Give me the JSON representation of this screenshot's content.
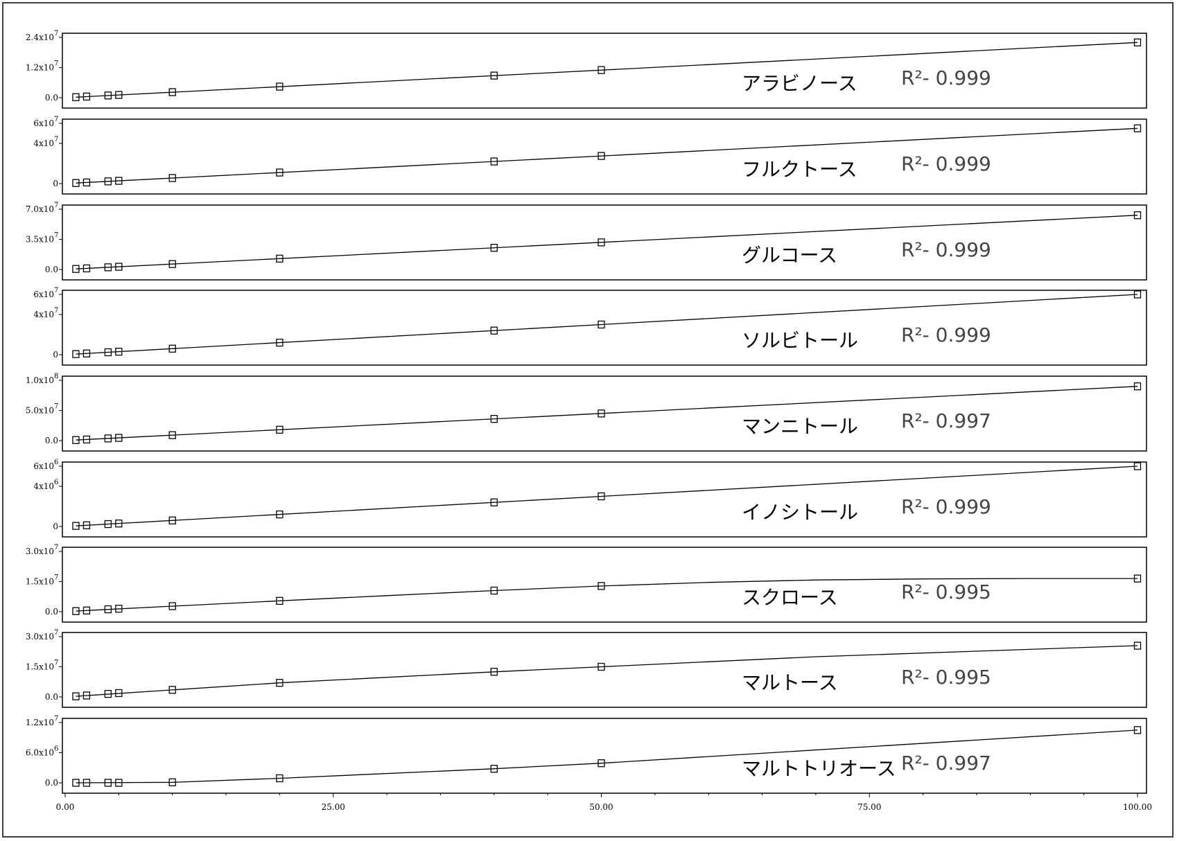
{
  "chart_data": [
    {
      "type": "scatter",
      "name": "アラビノース",
      "r2_label": "R²- 0.999",
      "y_ticks": [
        {
          "value": 0,
          "label": "0.0",
          "sup": ""
        },
        {
          "value": 12000000,
          "label": "1.2x10",
          "sup": "7"
        },
        {
          "value": 24000000,
          "label": "2.4x10",
          "sup": "7"
        }
      ],
      "ylim": [
        0,
        24000000
      ],
      "fit": [
        [
          1,
          200000
        ],
        [
          100,
          22000000
        ]
      ],
      "points": [
        [
          1,
          200000
        ],
        [
          2,
          440000
        ],
        [
          4,
          880000
        ],
        [
          5,
          1100000
        ],
        [
          10,
          2200000
        ],
        [
          20,
          4400000
        ],
        [
          40,
          8800000
        ],
        [
          50,
          11000000
        ],
        [
          100,
          22000000
        ]
      ]
    },
    {
      "type": "scatter",
      "name": "フルクトース",
      "r2_label": "R²- 0.999",
      "y_ticks": [
        {
          "value": 0,
          "label": "0",
          "sup": ""
        },
        {
          "value": 40000000,
          "label": "4x10",
          "sup": "7"
        },
        {
          "value": 60000000,
          "label": "6x10",
          "sup": "7"
        }
      ],
      "ylim": [
        0,
        60000000
      ],
      "fit": [
        [
          1,
          550000
        ],
        [
          100,
          55000000
        ]
      ],
      "points": [
        [
          1,
          550000
        ],
        [
          2,
          1100000
        ],
        [
          4,
          2200000
        ],
        [
          5,
          2750000
        ],
        [
          10,
          5500000
        ],
        [
          20,
          11000000
        ],
        [
          40,
          22000000
        ],
        [
          50,
          27500000
        ],
        [
          100,
          55000000
        ]
      ]
    },
    {
      "type": "scatter",
      "name": "グルコース",
      "r2_label": "R²- 0.999",
      "y_ticks": [
        {
          "value": 0,
          "label": "0.0",
          "sup": ""
        },
        {
          "value": 35000000,
          "label": "3.5x10",
          "sup": "7"
        },
        {
          "value": 70000000,
          "label": "7.0x10",
          "sup": "7"
        }
      ],
      "ylim": [
        0,
        70000000
      ],
      "fit": [
        [
          1,
          630000
        ],
        [
          100,
          63000000
        ]
      ],
      "points": [
        [
          1,
          630000
        ],
        [
          2,
          1260000
        ],
        [
          4,
          2520000
        ],
        [
          5,
          3150000
        ],
        [
          10,
          6300000
        ],
        [
          20,
          12600000
        ],
        [
          40,
          25200000
        ],
        [
          50,
          31500000
        ],
        [
          100,
          63000000
        ]
      ]
    },
    {
      "type": "scatter",
      "name": "ソルビトール",
      "r2_label": "R²- 0.999",
      "y_ticks": [
        {
          "value": 0,
          "label": "0",
          "sup": ""
        },
        {
          "value": 40000000,
          "label": "4x10",
          "sup": "7"
        },
        {
          "value": 60000000,
          "label": "6x10",
          "sup": "7"
        }
      ],
      "ylim": [
        0,
        60000000
      ],
      "fit": [
        [
          1,
          600000
        ],
        [
          100,
          60000000
        ]
      ],
      "points": [
        [
          1,
          600000
        ],
        [
          2,
          1200000
        ],
        [
          4,
          2400000
        ],
        [
          5,
          3000000
        ],
        [
          10,
          6000000
        ],
        [
          20,
          12000000
        ],
        [
          40,
          24000000
        ],
        [
          50,
          30000000
        ],
        [
          100,
          60000000
        ]
      ]
    },
    {
      "type": "scatter",
      "name": "マンニトール",
      "r2_label": "R²- 0.997",
      "y_ticks": [
        {
          "value": 0,
          "label": "0.0",
          "sup": ""
        },
        {
          "value": 50000000,
          "label": "5.0x10",
          "sup": "7"
        },
        {
          "value": 100000000,
          "label": "1.0x10",
          "sup": "8"
        }
      ],
      "ylim": [
        0,
        100000000
      ],
      "fit": [
        [
          1,
          900000
        ],
        [
          100,
          90000000
        ]
      ],
      "points": [
        [
          1,
          900000
        ],
        [
          2,
          1800000
        ],
        [
          4,
          3600000
        ],
        [
          5,
          4500000
        ],
        [
          10,
          9000000
        ],
        [
          20,
          18000000
        ],
        [
          40,
          36000000
        ],
        [
          50,
          45000000
        ],
        [
          100,
          90000000
        ]
      ]
    },
    {
      "type": "scatter",
      "name": "イノシトール",
      "r2_label": "R²- 0.999",
      "y_ticks": [
        {
          "value": 0,
          "label": "0",
          "sup": ""
        },
        {
          "value": 4000000,
          "label": "4x10",
          "sup": "6"
        },
        {
          "value": 6000000,
          "label": "6x10",
          "sup": "6"
        }
      ],
      "ylim": [
        0,
        6000000
      ],
      "fit": [
        [
          1,
          60000
        ],
        [
          100,
          6000000
        ]
      ],
      "points": [
        [
          1,
          60000
        ],
        [
          2,
          120000
        ],
        [
          4,
          240000
        ],
        [
          5,
          300000
        ],
        [
          10,
          600000
        ],
        [
          20,
          1200000
        ],
        [
          40,
          2400000
        ],
        [
          50,
          3000000
        ],
        [
          100,
          6000000
        ]
      ]
    },
    {
      "type": "scatter",
      "name": "スクロース",
      "r2_label": "R²- 0.995",
      "y_ticks": [
        {
          "value": 0,
          "label": "0.0",
          "sup": ""
        },
        {
          "value": 15000000,
          "label": "1.5x10",
          "sup": "7"
        },
        {
          "value": 30000000,
          "label": "3.0x10",
          "sup": "7"
        }
      ],
      "ylim": [
        0,
        30000000
      ],
      "fit": [
        [
          1,
          300000
        ],
        [
          10,
          2750000
        ],
        [
          20,
          5400000
        ],
        [
          30,
          8000000
        ],
        [
          40,
          10500000
        ],
        [
          50,
          12800000
        ],
        [
          60,
          14600000
        ],
        [
          70,
          15800000
        ],
        [
          80,
          16300000
        ],
        [
          90,
          16500000
        ],
        [
          100,
          16500000
        ]
      ],
      "points": [
        [
          1,
          300000
        ],
        [
          2,
          600000
        ],
        [
          4,
          1200000
        ],
        [
          5,
          1500000
        ],
        [
          10,
          2750000
        ],
        [
          20,
          5400000
        ],
        [
          40,
          10500000
        ],
        [
          50,
          12800000
        ],
        [
          100,
          16500000
        ]
      ]
    },
    {
      "type": "scatter",
      "name": "マルトース",
      "r2_label": "R²- 0.995",
      "y_ticks": [
        {
          "value": 0,
          "label": "0.0",
          "sup": ""
        },
        {
          "value": 15000000,
          "label": "1.5x10",
          "sup": "7"
        },
        {
          "value": 30000000,
          "label": "3.0x10",
          "sup": "7"
        }
      ],
      "ylim": [
        0,
        30000000
      ],
      "fit": [
        [
          1,
          300000
        ],
        [
          10,
          3500000
        ],
        [
          20,
          7000000
        ],
        [
          40,
          12500000
        ],
        [
          50,
          15000000
        ],
        [
          70,
          20000000
        ],
        [
          100,
          25500000
        ]
      ],
      "points": [
        [
          1,
          300000
        ],
        [
          2,
          700000
        ],
        [
          4,
          1500000
        ],
        [
          5,
          1900000
        ],
        [
          10,
          3500000
        ],
        [
          20,
          7000000
        ],
        [
          40,
          12500000
        ],
        [
          50,
          15000000
        ],
        [
          100,
          25500000
        ]
      ]
    },
    {
      "type": "scatter",
      "name": "マルトトリオース",
      "r2_label": "R²- 0.997",
      "y_ticks": [
        {
          "value": 0,
          "label": "0.0",
          "sup": ""
        },
        {
          "value": 6000000,
          "label": "6.0x10",
          "sup": "6"
        },
        {
          "value": 12000000,
          "label": "1.2x10",
          "sup": "7"
        }
      ],
      "ylim": [
        0,
        12000000
      ],
      "fit": [
        [
          1,
          0
        ],
        [
          10,
          100000
        ],
        [
          20,
          900000
        ],
        [
          40,
          2800000
        ],
        [
          50,
          3900000
        ],
        [
          100,
          10500000
        ]
      ],
      "points": [
        [
          1,
          0
        ],
        [
          2,
          0
        ],
        [
          4,
          0
        ],
        [
          5,
          0
        ],
        [
          10,
          100000
        ],
        [
          20,
          900000
        ],
        [
          40,
          2800000
        ],
        [
          50,
          3900000
        ],
        [
          100,
          10500000
        ]
      ]
    }
  ],
  "x_axis": {
    "ticks": [
      {
        "value": 0,
        "label": "0.00"
      },
      {
        "value": 25,
        "label": "25.00"
      },
      {
        "value": 50,
        "label": "50.00"
      },
      {
        "value": 75,
        "label": "75.00"
      },
      {
        "value": 100,
        "label": "100.00"
      }
    ],
    "xlim": [
      0,
      100
    ]
  }
}
